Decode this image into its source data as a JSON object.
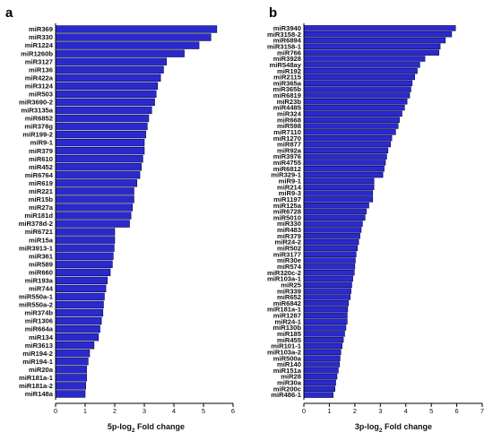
{
  "colors": {
    "bar_fill": "#2a2acc",
    "bar_stroke": "#0a0a55",
    "axis": "#000000"
  },
  "chart_data": [
    {
      "panel": "a",
      "type": "bar",
      "orientation": "horizontal",
      "xlabel_prefix": "5p-log",
      "xlabel_sub": "2",
      "xlabel_suffix": " Fold change",
      "xlim": [
        0,
        6
      ],
      "xticks": [
        0,
        1,
        2,
        3,
        4,
        5,
        6
      ],
      "categories": [
        "miR369",
        "miR330",
        "miR1224",
        "miR1260b",
        "miR3127",
        "miR136",
        "miR422a",
        "miR3124",
        "miR503",
        "miR3690-2",
        "miR3135a",
        "miR6852",
        "miR378g",
        "miR199-2",
        "miR9-1",
        "miR379",
        "miR610",
        "miR452",
        "miR6764",
        "miR619",
        "miR221",
        "miR15b",
        "miR27a",
        "miR181d",
        "miR378d-2",
        "miR6721",
        "miR15a",
        "miR3913-1",
        "miR361",
        "miR589",
        "miR660",
        "miR193a",
        "miR744",
        "miR550a-1",
        "miR550a-2",
        "miR374b",
        "miR1306",
        "miR664a",
        "miR134",
        "miR3613",
        "miR194-2",
        "miR194-1",
        "miR20a",
        "miR181a-1",
        "miR181a-2",
        "miR148a"
      ],
      "values": [
        5.45,
        5.25,
        4.85,
        4.35,
        3.75,
        3.65,
        3.55,
        3.45,
        3.4,
        3.35,
        3.25,
        3.15,
        3.1,
        3.05,
        3.0,
        3.0,
        2.95,
        2.9,
        2.85,
        2.75,
        2.65,
        2.65,
        2.6,
        2.55,
        2.5,
        2.0,
        2.0,
        1.98,
        1.95,
        1.92,
        1.85,
        1.75,
        1.7,
        1.65,
        1.62,
        1.6,
        1.55,
        1.5,
        1.45,
        1.3,
        1.15,
        1.1,
        1.05,
        1.05,
        1.02,
        1.0
      ]
    },
    {
      "panel": "b",
      "type": "bar",
      "orientation": "horizontal",
      "xlabel_prefix": "3p-log",
      "xlabel_sub": "2",
      "xlabel_suffix": " Fold change",
      "xlim": [
        0,
        7
      ],
      "xticks": [
        0,
        1,
        2,
        3,
        4,
        5,
        6,
        7
      ],
      "categories": [
        "miR3940",
        "miR3158-2",
        "miR6894",
        "miR3158-1",
        "miR766",
        "miR3928",
        "miR548ay",
        "miR192",
        "miR2115",
        "miR365a",
        "miR365b",
        "miR6819",
        "miR23b",
        "miR4485",
        "miR324",
        "miR668",
        "miR598",
        "miR7110",
        "miR1270",
        "miR877",
        "miR92a",
        "miR3976",
        "miR4755",
        "miR6812",
        "miR329-1",
        "miR9-1",
        "miR214",
        "miR9-3",
        "miR1197",
        "miR125a",
        "miR6728",
        "miR5010",
        "miR330",
        "miR483",
        "miR379",
        "miR24-2",
        "miR502",
        "miR3177",
        "miR30e",
        "miR574",
        "miR320c-2",
        "miR103a-1",
        "miR25",
        "miR339",
        "miR652",
        "miR6842",
        "miR181a-1",
        "miR1287",
        "miR24-1",
        "miR130b",
        "miR185",
        "miR455",
        "miR101-1",
        "miR103a-2",
        "miR500a",
        "miR140",
        "miR151a",
        "miR28",
        "miR30a",
        "miR200c",
        "miR486-1"
      ],
      "values": [
        5.95,
        5.8,
        5.55,
        5.35,
        5.3,
        4.75,
        4.55,
        4.45,
        4.35,
        4.25,
        4.2,
        4.15,
        4.05,
        3.95,
        3.85,
        3.75,
        3.7,
        3.6,
        3.45,
        3.4,
        3.3,
        3.25,
        3.2,
        3.15,
        3.1,
        2.75,
        2.75,
        2.7,
        2.7,
        2.55,
        2.45,
        2.4,
        2.3,
        2.25,
        2.2,
        2.15,
        2.1,
        2.05,
        2.02,
        2.0,
        1.98,
        1.92,
        1.88,
        1.85,
        1.82,
        1.75,
        1.72,
        1.7,
        1.7,
        1.65,
        1.6,
        1.55,
        1.5,
        1.45,
        1.42,
        1.4,
        1.35,
        1.3,
        1.25,
        1.22,
        1.15
      ]
    }
  ]
}
